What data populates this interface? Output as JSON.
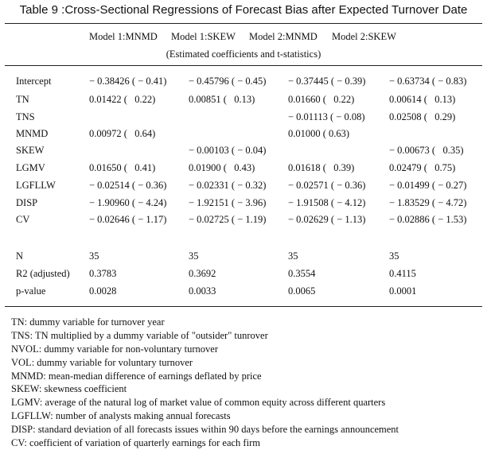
{
  "title": "Table 9 :Cross-Sectional Regressions of Forecast Bias after Expected Turnover Date",
  "columns": [
    "Model 1:MNMD",
    "Model 1:SKEW",
    "Model 2:MNMD",
    "Model 2:SKEW"
  ],
  "subheader": "(Estimated coefficients and t-statistics)",
  "rows": [
    {
      "label": "Intercept",
      "cells": [
        "− 0.38426 ( − 0.41)",
        "− 0.45796 ( − 0.45)",
        "− 0.37445 ( − 0.39)",
        "− 0.63734 ( − 0.83)"
      ]
    },
    {
      "label": "TN",
      "cells": [
        "0.01422 (   0.22)",
        "0.00851 (   0.13)",
        "0.01660 (   0.22)",
        "0.00614 (   0.13)"
      ]
    },
    {
      "label": "TNS",
      "cells": [
        "",
        "",
        "− 0.01113 ( − 0.08)",
        "0.02508 (   0.29)"
      ]
    },
    {
      "label": "MNMD",
      "cells": [
        "0.00972 (   0.64)",
        "",
        "0.01000 ( 0.63)",
        ""
      ]
    },
    {
      "label": "SKEW",
      "cells": [
        "",
        "− 0.00103 ( − 0.04)",
        "",
        "− 0.00673 (   0.35)"
      ]
    },
    {
      "label": "LGMV",
      "cells": [
        "0.01650 (   0.41)",
        "0.01900 (   0.43)",
        "0.01618 (   0.39)",
        "0.02479 (   0.75)"
      ]
    },
    {
      "label": "LGFLLW",
      "cells": [
        "− 0.02514 ( − 0.36)",
        "− 0.02331 ( − 0.32)",
        "− 0.02571 ( − 0.36)",
        "− 0.01499 ( − 0.27)"
      ]
    },
    {
      "label": "DISP",
      "cells": [
        "− 1.90960 ( − 4.24)",
        "− 1.92151 ( − 3.96)",
        "− 1.91508 ( − 4.12)",
        "− 1.83529 ( − 4.72)"
      ]
    },
    {
      "label": "CV",
      "cells": [
        "− 0.02646 ( − 1.17)",
        "− 0.02725 ( − 1.19)",
        "− 0.02629 ( − 1.13)",
        "− 0.02886 ( − 1.53)"
      ]
    }
  ],
  "stats": [
    {
      "label": "N",
      "cells": [
        "35",
        "35",
        "35",
        "35"
      ]
    },
    {
      "label": "R2 (adjusted)",
      "cells": [
        "0.3783",
        "0.3692",
        "0.3554",
        "0.4115"
      ]
    },
    {
      "label": "p-value",
      "cells": [
        "0.0028",
        "0.0033",
        "0.0065",
        "0.0001"
      ]
    }
  ],
  "notes": [
    "TN: dummy variable for turnover year",
    "TNS: TN multiplied by a dummy variable of \"outsider\" tunrover",
    "NVOL: dummy variable for non-voluntary turnover",
    "VOL: dummy variable for voluntary turnover",
    "MNMD: mean-median difference of earnings deflated by price",
    "SKEW: skewness coefficient",
    "LGMV: average of the natural log of market value of common equity across different quarters",
    "LGFLLW: number of analysts making annual forecasts",
    "DISP: standard deviation of all forecasts issues within 90 days before the earnings announcement",
    "CV: coefficient of variation of quarterly earnings for each firm"
  ]
}
